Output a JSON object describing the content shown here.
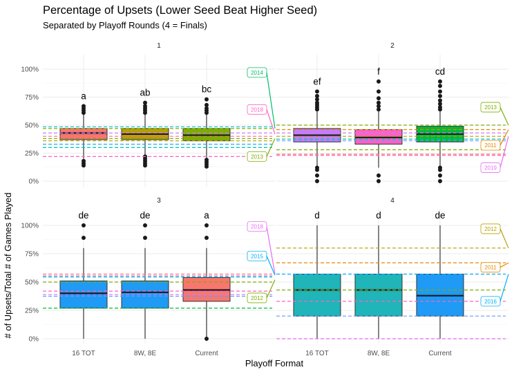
{
  "title": "Percentage of Upsets (Lower Seed Beat Higher Seed)",
  "subtitle": "Separated by Playoff Rounds (4 = Finals)",
  "chart_data": {
    "type": "boxplot",
    "xlabel": "Playoff Format",
    "ylabel": "# of Upsets/Total # of Games Played",
    "categories": [
      "16 TOT",
      "8W, 8E",
      "Current"
    ],
    "y_ticks": [
      "0%",
      "25%",
      "50%",
      "75%",
      "100%"
    ],
    "ylim": [
      0,
      1
    ],
    "grid": true,
    "facets": [
      {
        "label": "1",
        "boxes": [
          {
            "category": "16 TOT",
            "color": "#F8766D",
            "q1": 0.37,
            "median": 0.43,
            "q3": 0.47,
            "mean": 0.42,
            "whisker_low": 0.2,
            "whisker_high": 0.6,
            "outliers": [
              0.14,
              0.16,
              0.18,
              0.61,
              0.63,
              0.65,
              0.67
            ],
            "letter": "a"
          },
          {
            "category": "8W, 8E",
            "color": "#B79F00",
            "q1": 0.37,
            "median": 0.42,
            "q3": 0.47,
            "mean": 0.42,
            "whisker_low": 0.2,
            "whisker_high": 0.6,
            "outliers": [
              0.14,
              0.16,
              0.18,
              0.2,
              0.22,
              0.61,
              0.63,
              0.65,
              0.67,
              0.7
            ],
            "letter": "ab"
          },
          {
            "category": "Current",
            "color": "#7CAE00",
            "q1": 0.36,
            "median": 0.41,
            "q3": 0.47,
            "mean": 0.41,
            "whisker_low": 0.2,
            "whisker_high": 0.6,
            "outliers": [
              0.13,
              0.15,
              0.17,
              0.19,
              0.61,
              0.63,
              0.65,
              0.68,
              0.73
            ],
            "letter": "bc"
          }
        ],
        "hlines": [
          {
            "y": 0.485,
            "color": "#00BFC4"
          },
          {
            "y": 0.47,
            "color": "#7CAE00"
          },
          {
            "y": 0.43,
            "color": "#C77CFF"
          },
          {
            "y": 0.4,
            "color": "#F8766D"
          },
          {
            "y": 0.38,
            "color": "#7CAE00"
          },
          {
            "y": 0.36,
            "color": "#B79F00"
          },
          {
            "y": 0.33,
            "color": "#00A9FF"
          },
          {
            "y": 0.3,
            "color": "#00BFC4"
          },
          {
            "y": 0.22,
            "color": "#FF61C3"
          }
        ],
        "callouts": [
          {
            "label": "2014",
            "color": "#00BE67",
            "label_y": 0.97,
            "target_y": 0.47
          },
          {
            "label": "2018",
            "color": "#FF61C3",
            "label_y": 0.64,
            "target_y": 0.42
          },
          {
            "label": "2013",
            "color": "#7CAE00",
            "label_y": 0.22,
            "target_y": 0.38
          }
        ]
      },
      {
        "label": "2",
        "boxes": [
          {
            "category": "16 TOT",
            "color": "#C77CFF",
            "q1": 0.35,
            "median": 0.41,
            "q3": 0.47,
            "mean": 0.41,
            "whisker_low": 0.12,
            "whisker_high": 0.62,
            "outliers": [
              0.0,
              0.05,
              0.1,
              0.12,
              0.64,
              0.66,
              0.68,
              0.7,
              0.73,
              0.76,
              0.8
            ],
            "letter": "ef"
          },
          {
            "category": "8W, 8E",
            "color": "#FF61C3",
            "q1": 0.33,
            "median": 0.39,
            "q3": 0.46,
            "mean": 0.4,
            "whisker_low": 0.12,
            "whisker_high": 0.62,
            "outliers": [
              0.0,
              0.05,
              0.64,
              0.67,
              0.7,
              0.74,
              0.8,
              0.89
            ],
            "letter": "f"
          },
          {
            "category": "Current",
            "color": "#00BA38",
            "q1": 0.35,
            "median": 0.42,
            "q3": 0.49,
            "mean": 0.42,
            "whisker_low": 0.12,
            "whisker_high": 0.62,
            "outliers": [
              0.0,
              0.05,
              0.1,
              0.12,
              0.64,
              0.66,
              0.69,
              0.72,
              0.76,
              0.8,
              0.85,
              0.89
            ],
            "letter": "cd"
          }
        ],
        "hlines": [
          {
            "y": 0.5,
            "color": "#7CAE00"
          },
          {
            "y": 0.46,
            "color": "#E58700"
          },
          {
            "y": 0.43,
            "color": "#C77CFF"
          },
          {
            "y": 0.4,
            "color": "#B79F00"
          },
          {
            "y": 0.375,
            "color": "#00BFC4"
          },
          {
            "y": 0.36,
            "color": "#619CFF"
          },
          {
            "y": 0.28,
            "color": "#7CAE00"
          },
          {
            "y": 0.24,
            "color": "#F8766D"
          },
          {
            "y": 0.23,
            "color": "#FF61C3"
          }
        ],
        "callouts": [
          {
            "label": "2013",
            "color": "#7CAE00",
            "label_y": 0.66,
            "target_y": 0.5
          },
          {
            "label": "2011",
            "color": "#E58700",
            "label_y": 0.32,
            "target_y": 0.46
          },
          {
            "label": "2019",
            "color": "#E76BF3",
            "label_y": 0.12,
            "target_y": 0.4
          }
        ]
      },
      {
        "label": "3",
        "boxes": [
          {
            "category": "16 TOT",
            "color": "#1F9AF5",
            "q1": 0.27,
            "median": 0.4,
            "q3": 0.51,
            "mean": 0.4,
            "whisker_low": 0.0,
            "whisker_high": 0.8,
            "outliers": [
              0.89,
              1.0
            ],
            "letter": "de"
          },
          {
            "category": "8W, 8E",
            "color": "#1F9AF5",
            "q1": 0.27,
            "median": 0.41,
            "q3": 0.51,
            "mean": 0.41,
            "whisker_low": 0.0,
            "whisker_high": 0.8,
            "outliers": [
              0.89,
              1.0
            ],
            "letter": "de"
          },
          {
            "category": "Current",
            "color": "#F8766D",
            "q1": 0.33,
            "median": 0.43,
            "q3": 0.54,
            "mean": 0.43,
            "whisker_low": 0.0,
            "whisker_high": 0.8,
            "outliers": [
              0.0,
              0.89,
              1.0
            ],
            "letter": "a"
          }
        ],
        "hlines": [
          {
            "y": 0.57,
            "color": "#F8766D"
          },
          {
            "y": 0.555,
            "color": "#C77CFF"
          },
          {
            "y": 0.545,
            "color": "#00BFC4"
          },
          {
            "y": 0.5,
            "color": "#7CAE00"
          },
          {
            "y": 0.42,
            "color": "#FF61C3"
          },
          {
            "y": 0.39,
            "color": "#C77CFF"
          },
          {
            "y": 0.375,
            "color": "#619CFF"
          },
          {
            "y": 0.27,
            "color": "#00BA38"
          }
        ],
        "callouts": [
          {
            "label": "2018",
            "color": "#E76BF3",
            "label_y": 0.99,
            "target_y": 0.57
          },
          {
            "label": "2015",
            "color": "#00B0F6",
            "label_y": 0.73,
            "target_y": 0.56
          },
          {
            "label": "2012",
            "color": "#7CAE00",
            "label_y": 0.36,
            "target_y": 0.52
          }
        ]
      },
      {
        "label": "4",
        "boxes": [
          {
            "category": "16 TOT",
            "color": "#1FB5B9",
            "q1": 0.2,
            "median": 0.43,
            "q3": 0.57,
            "mean": 0.43,
            "whisker_low": 0.0,
            "whisker_high": 1.0,
            "outliers": [],
            "letter": "d"
          },
          {
            "category": "8W, 8E",
            "color": "#1FB5B9",
            "q1": 0.2,
            "median": 0.43,
            "q3": 0.57,
            "mean": 0.43,
            "whisker_low": 0.0,
            "whisker_high": 1.0,
            "outliers": [],
            "letter": "d"
          },
          {
            "category": "Current",
            "color": "#1F9AF5",
            "q1": 0.2,
            "median": 0.38,
            "q3": 0.57,
            "mean": 0.41,
            "whisker_low": 0.0,
            "whisker_high": 1.0,
            "outliers": [],
            "letter": "de"
          }
        ],
        "hlines": [
          {
            "y": 0.8,
            "color": "#B79F00"
          },
          {
            "y": 0.67,
            "color": "#E58700"
          },
          {
            "y": 0.57,
            "color": "#00A9FF"
          },
          {
            "y": 0.43,
            "color": "#7CAE00"
          },
          {
            "y": 0.33,
            "color": "#FF61C3"
          },
          {
            "y": 0.2,
            "color": "#619CFF"
          },
          {
            "y": 0.0,
            "color": "#E76BF3"
          }
        ],
        "callouts": [
          {
            "label": "2012",
            "color": "#B79F00",
            "label_y": 0.97,
            "target_y": 0.8
          },
          {
            "label": "2011",
            "color": "#E58700",
            "label_y": 0.63,
            "target_y": 0.67
          },
          {
            "label": "2016",
            "color": "#00B0F6",
            "label_y": 0.33,
            "target_y": 0.57
          }
        ]
      }
    ]
  }
}
